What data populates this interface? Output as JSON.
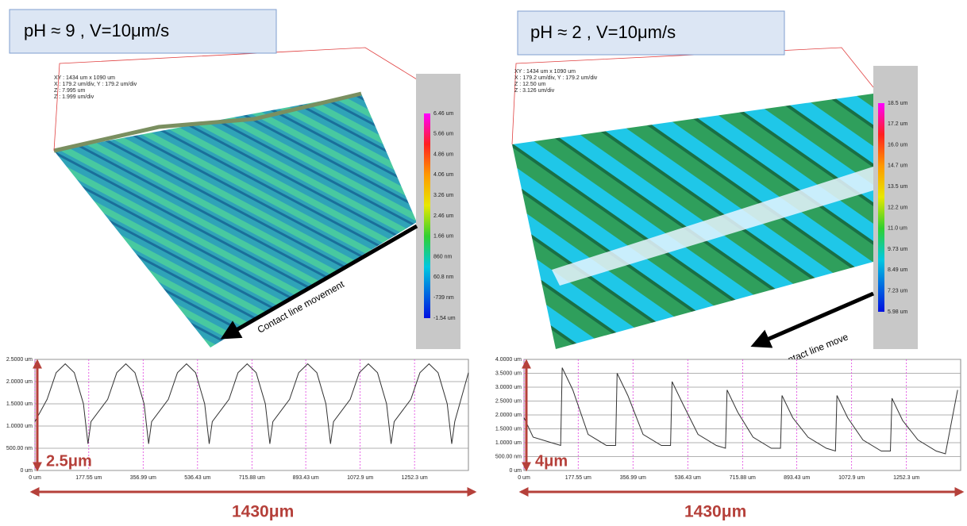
{
  "panels": [
    {
      "title": "pH ≈ 9 , V=10μm/s",
      "info": [
        "XY : 1434 um x 1090 um",
        "X : 179.2 um/div, Y : 179.2 um/div",
        "Z : 7.995 um",
        "Z : 1.999 um/div"
      ],
      "colorbar": [
        "6.46 um",
        "5.66 um",
        "4.86 um",
        "4.06 um",
        "3.26 um",
        "2.46 um",
        "1.66 um",
        "860 nm",
        "60.8 nm",
        "-739 nm",
        "-1.54 um"
      ],
      "arrow_label": "Contact line movement",
      "height_label": "2.5μm",
      "width_label": "1430μm"
    },
    {
      "title": "pH ≈ 2 , V=10μm/s",
      "info": [
        "XY : 1434 um x 1090 um",
        "X : 179.2 um/div, Y : 179.2 um/div",
        "Z : 12.50 um",
        "Z : 3.126 um/div"
      ],
      "colorbar": [
        "18.5 um",
        "17.2 um",
        "16.0 um",
        "14.7 um",
        "13.5 um",
        "12.2 um",
        "11.0 um",
        "9.73 um",
        "8.49 um",
        "7.23 um",
        "5.98 um"
      ],
      "arrow_label": "Contact line move",
      "height_label": "4μm",
      "width_label": "1430μm"
    }
  ],
  "chart_data": [
    {
      "type": "line",
      "color": "#333333",
      "grid": true,
      "x": [
        0,
        40,
        70,
        100,
        130,
        160,
        175,
        185,
        240,
        270,
        300,
        330,
        360,
        375,
        385,
        440,
        470,
        500,
        530,
        560,
        575,
        585,
        640,
        670,
        700,
        730,
        760,
        775,
        785,
        840,
        870,
        900,
        930,
        960,
        975,
        985,
        1040,
        1070,
        1100,
        1130,
        1160,
        1175,
        1185,
        1240,
        1270,
        1300,
        1330,
        1360,
        1375,
        1385,
        1430
      ],
      "values": [
        1.1,
        1.6,
        2.2,
        2.4,
        2.2,
        1.5,
        0.6,
        1.1,
        1.6,
        2.2,
        2.4,
        2.2,
        1.5,
        0.6,
        1.1,
        1.6,
        2.2,
        2.4,
        2.2,
        1.5,
        0.6,
        1.1,
        1.6,
        2.2,
        2.4,
        2.2,
        1.5,
        0.6,
        1.1,
        1.6,
        2.2,
        2.4,
        2.2,
        1.5,
        0.6,
        1.1,
        1.6,
        2.2,
        2.4,
        2.2,
        1.5,
        0.6,
        1.1,
        1.6,
        2.2,
        2.4,
        2.2,
        1.5,
        0.6,
        1.1,
        2.2
      ],
      "xlim": [
        0,
        1430
      ],
      "xticks": [
        {
          "value": 0,
          "label": "0 um"
        },
        {
          "value": 177.55,
          "label": "177.55 um"
        },
        {
          "value": 356.99,
          "label": "356.99 um"
        },
        {
          "value": 536.43,
          "label": "536.43 um"
        },
        {
          "value": 715.88,
          "label": "715.88 um"
        },
        {
          "value": 893.43,
          "label": "893.43 um"
        },
        {
          "value": 1072.9,
          "label": "1072.9 um"
        },
        {
          "value": 1252.3,
          "label": "1252.3 um"
        }
      ],
      "ylim": [
        0,
        2.5
      ],
      "yticks": [
        {
          "value": 0,
          "label": "0 um"
        },
        {
          "value": 0.5,
          "label": "500.00 nm"
        },
        {
          "value": 1,
          "label": "1.0000 um"
        },
        {
          "value": 1.5,
          "label": "1.5000 um"
        },
        {
          "value": 2,
          "label": "2.0000 um"
        },
        {
          "value": 2.5,
          "label": "2.5000 um"
        }
      ]
    },
    {
      "type": "line",
      "color": "#333333",
      "grid": true,
      "x": [
        0,
        30,
        90,
        120,
        125,
        160,
        210,
        270,
        300,
        305,
        340,
        390,
        450,
        480,
        485,
        520,
        570,
        630,
        660,
        665,
        700,
        750,
        810,
        840,
        845,
        880,
        930,
        990,
        1020,
        1025,
        1060,
        1110,
        1170,
        1200,
        1205,
        1240,
        1290,
        1350,
        1380,
        1420
      ],
      "values": [
        1.9,
        1.2,
        1.0,
        0.9,
        3.7,
        2.9,
        1.3,
        0.9,
        0.9,
        3.5,
        2.7,
        1.3,
        0.9,
        0.9,
        3.2,
        2.4,
        1.3,
        0.9,
        0.8,
        2.9,
        2.1,
        1.2,
        0.8,
        0.8,
        2.7,
        1.9,
        1.2,
        0.8,
        0.7,
        2.7,
        1.9,
        1.1,
        0.7,
        0.7,
        2.6,
        1.8,
        1.1,
        0.7,
        0.6,
        2.9
      ],
      "xlim": [
        0,
        1430
      ],
      "xticks": [
        {
          "value": 0,
          "label": "0 um"
        },
        {
          "value": 177.55,
          "label": "177.55 um"
        },
        {
          "value": 356.99,
          "label": "356.99 um"
        },
        {
          "value": 536.43,
          "label": "536.43 um"
        },
        {
          "value": 715.88,
          "label": "715.88 um"
        },
        {
          "value": 893.43,
          "label": "893.43 um"
        },
        {
          "value": 1072.9,
          "label": "1072.9 um"
        },
        {
          "value": 1252.3,
          "label": "1252.3 um"
        }
      ],
      "ylim": [
        0,
        4
      ],
      "yticks": [
        {
          "value": 0,
          "label": "0 um"
        },
        {
          "value": 0.5,
          "label": "500.00 nm"
        },
        {
          "value": 1,
          "label": "1.0000 um"
        },
        {
          "value": 1.5,
          "label": "1.5000 um"
        },
        {
          "value": 2,
          "label": "2.0000 um"
        },
        {
          "value": 2.5,
          "label": "2.5000 um"
        },
        {
          "value": 3,
          "label": "3.0000 um"
        },
        {
          "value": 3.5,
          "label": "3.5000 um"
        },
        {
          "value": 4,
          "label": "4.0000 um"
        }
      ]
    }
  ]
}
